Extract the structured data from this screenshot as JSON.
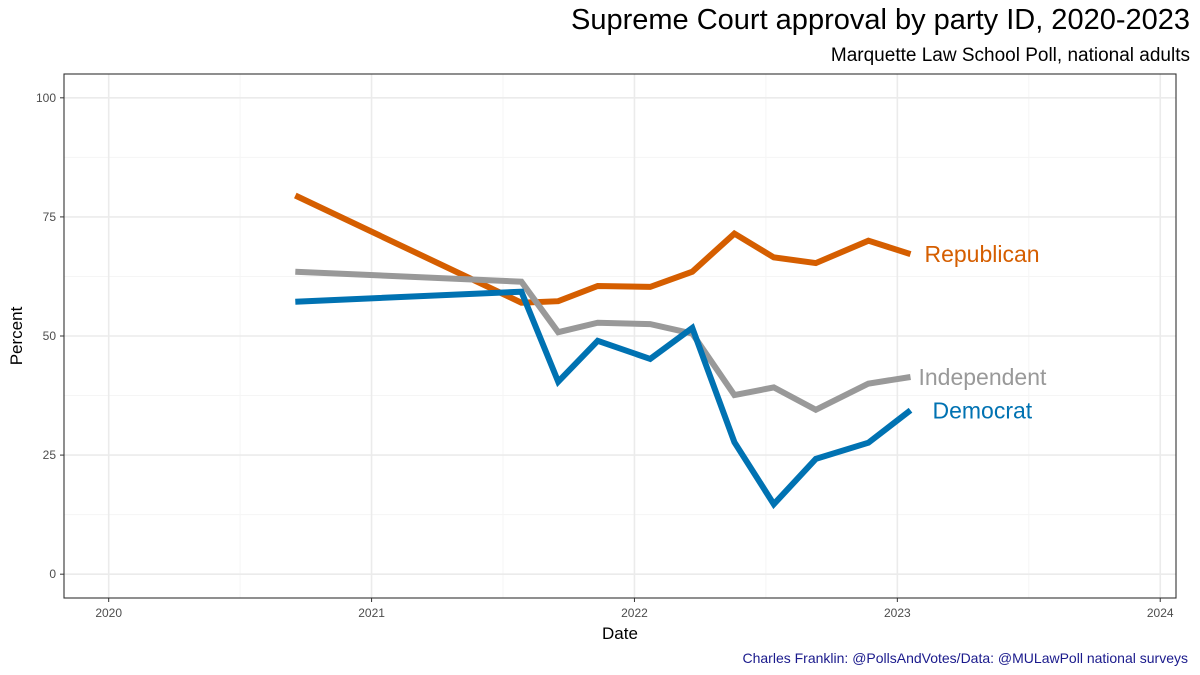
{
  "header": {
    "title": "Supreme Court approval by party ID, 2020-2023",
    "subtitle": "Marquette Law School Poll, national adults"
  },
  "caption": "Charles Franklin: @PollsAndVotes/Data: @MULawPoll national surveys",
  "colors": {
    "republican": "#D55E00",
    "independent": "#999999",
    "democrat": "#0072B2",
    "grid_major": "#EBEBEB",
    "grid_minor": "#F5F5F5",
    "panel_border": "#333333"
  },
  "chart_data": {
    "type": "line",
    "title": "Supreme Court approval by party ID, 2020-2023",
    "subtitle": "Marquette Law School Poll, national adults",
    "xlabel": "Date",
    "ylabel": "Percent",
    "xlim": [
      2019.83,
      2024.06
    ],
    "ylim": [
      -5,
      105
    ],
    "x_ticks": [
      2020,
      2021,
      2022,
      2023,
      2024
    ],
    "x_tick_labels": [
      "2020",
      "2021",
      "2022",
      "2023",
      "2024"
    ],
    "y_ticks": [
      0,
      25,
      50,
      75,
      100
    ],
    "y_tick_labels": [
      "0",
      "25",
      "50",
      "75",
      "100"
    ],
    "grid": true,
    "legend": "direct labels at line ends",
    "series": [
      {
        "name": "Republican",
        "color_key": "republican",
        "x": [
          2020.71,
          2021.57,
          2021.71,
          2021.86,
          2022.06,
          2022.22,
          2022.38,
          2022.53,
          2022.69,
          2022.89,
          2023.05
        ],
        "values": [
          79.5,
          57.0,
          57.3,
          60.5,
          60.3,
          63.5,
          71.5,
          66.5,
          65.3,
          70.0,
          67.2
        ]
      },
      {
        "name": "Independent",
        "color_key": "independent",
        "x": [
          2020.71,
          2021.57,
          2021.71,
          2021.86,
          2022.06,
          2022.22,
          2022.38,
          2022.53,
          2022.69,
          2022.89,
          2023.05
        ],
        "values": [
          63.5,
          61.4,
          50.8,
          52.8,
          52.5,
          50.5,
          37.6,
          39.2,
          34.5,
          40.0,
          41.4
        ]
      },
      {
        "name": "Democrat",
        "color_key": "democrat",
        "x": [
          2020.71,
          2021.57,
          2021.71,
          2021.86,
          2022.06,
          2022.22,
          2022.38,
          2022.53,
          2022.69,
          2022.89,
          2023.05
        ],
        "values": [
          57.2,
          59.3,
          40.4,
          49.0,
          45.2,
          51.7,
          27.7,
          14.7,
          24.2,
          27.6,
          34.4
        ]
      }
    ]
  }
}
